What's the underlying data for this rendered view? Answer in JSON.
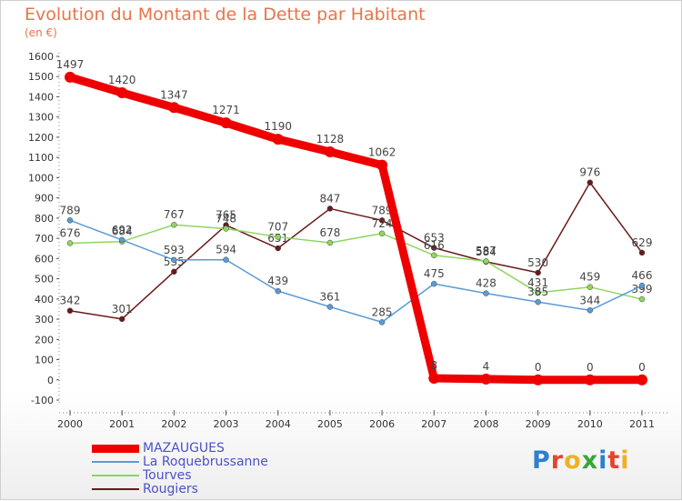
{
  "title": "Evolution du Montant de la Dette par Habitant",
  "unit_label": "(en €)",
  "logo": {
    "text": "Proxiti",
    "letter_colors": [
      "#2e7fd0",
      "#e5442e",
      "#f0b020",
      "#3aa63a",
      "#2e7fd0",
      "#e5442e",
      "#f0b020"
    ]
  },
  "chart_data": {
    "type": "line",
    "title": "Evolution du Montant de la Dette par Habitant",
    "ylabel": "(en €)",
    "xlabel": "",
    "categories": [
      "2000",
      "2001",
      "2002",
      "2003",
      "2004",
      "2005",
      "2006",
      "2007",
      "2008",
      "2009",
      "2010",
      "2011"
    ],
    "ylim": [
      -100,
      1600
    ],
    "yticks": [
      -100,
      0,
      100,
      200,
      300,
      400,
      500,
      600,
      700,
      800,
      900,
      1000,
      1100,
      1200,
      1300,
      1400,
      1500,
      1600
    ],
    "grid": false,
    "legend_position": "bottom-left",
    "series": [
      {
        "name": "Rougiers",
        "color": "#6b1a1a",
        "values": [
          342,
          301,
          535,
          765,
          651,
          847,
          789,
          653,
          584,
          530,
          976,
          629
        ],
        "labels": [
          "342",
          "301",
          "535",
          "765",
          "651",
          "847",
          "789",
          "653",
          "584",
          "530",
          "976",
          "629"
        ],
        "label_positions": [
          "above",
          "above",
          "above",
          "above",
          "above",
          "above",
          "above",
          "above",
          "above",
          "above",
          "above",
          "above"
        ]
      },
      {
        "name": "Tourves",
        "color": "#8ed660",
        "values": [
          676,
          684,
          767,
          748,
          707,
          678,
          724,
          616,
          587,
          431,
          459,
          399
        ],
        "labels": [
          "676",
          "684",
          "767",
          "748",
          "707",
          "678",
          "724",
          "616",
          "587",
          "431",
          "459",
          "399"
        ],
        "label_positions": [
          "above",
          "above",
          "above",
          "above",
          "above",
          "above",
          "above",
          "above",
          "above",
          "above",
          "above",
          "above"
        ]
      },
      {
        "name": "La Roquebrussanne",
        "color": "#5b9bd5",
        "values": [
          789,
          692,
          593,
          594,
          439,
          361,
          285,
          475,
          428,
          385,
          344,
          466
        ],
        "labels": [
          "789",
          "692",
          "593",
          "594",
          "439",
          "361",
          "285",
          "475",
          "428",
          "385",
          "344",
          "466"
        ],
        "label_positions": [
          "above",
          "above",
          "above",
          "above",
          "above",
          "above",
          "above",
          "above",
          "above",
          "above",
          "above",
          "above"
        ]
      },
      {
        "name": "MAZAUGUES",
        "color": "#ee0000",
        "values": [
          1497,
          1420,
          1347,
          1271,
          1190,
          1128,
          1062,
          8,
          4,
          0,
          0,
          0
        ],
        "labels": [
          "1497",
          "1420",
          "1347",
          "1271",
          "1190",
          "1128",
          "1062",
          "8",
          "4",
          "0",
          "0",
          "0"
        ],
        "label_positions": [
          "above",
          "above",
          "above",
          "above",
          "above",
          "above",
          "above",
          "above",
          "above",
          "above",
          "above",
          "above"
        ]
      }
    ],
    "legend_order": [
      "MAZAUGUES",
      "La Roquebrussanne",
      "Tourves",
      "Rougiers"
    ]
  }
}
